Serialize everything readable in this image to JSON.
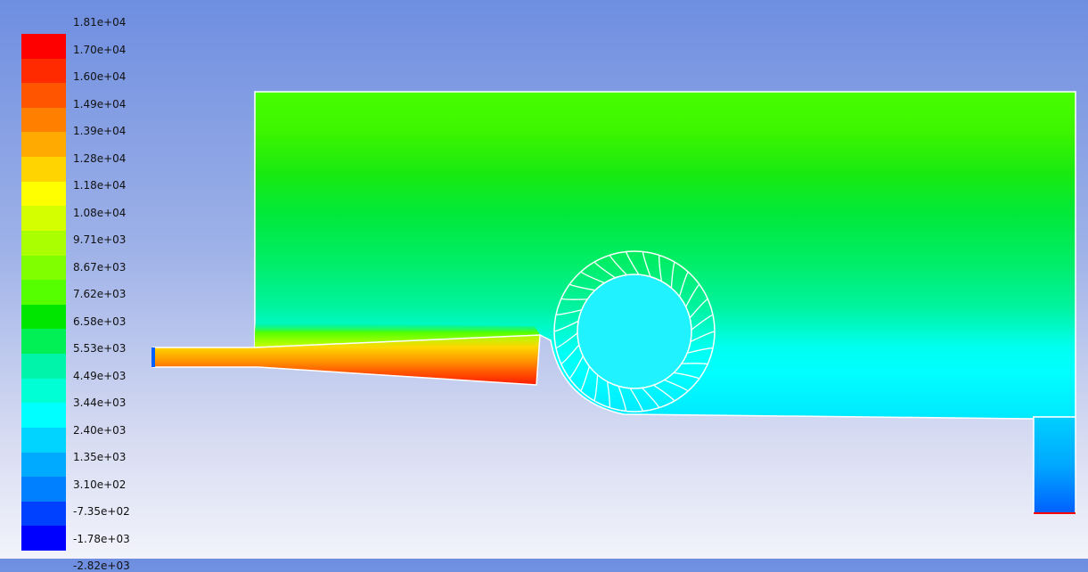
{
  "chart_data": {
    "type": "heatmap",
    "title": "",
    "legend": {
      "placement": "left",
      "tick_labels": [
        "1.81e+04",
        "1.70e+04",
        "1.60e+04",
        "1.49e+04",
        "1.39e+04",
        "1.28e+04",
        "1.18e+04",
        "1.08e+04",
        "9.71e+03",
        "8.67e+03",
        "7.62e+03",
        "6.58e+03",
        "5.53e+03",
        "4.49e+03",
        "3.44e+03",
        "2.40e+03",
        "1.35e+03",
        "3.10e+02",
        "-7.35e+02",
        "-1.78e+03",
        "-2.82e+03"
      ],
      "values": [
        18100,
        17000,
        16000,
        14900,
        13900,
        12800,
        11800,
        10800,
        9710,
        8670,
        7620,
        6580,
        5530,
        4490,
        3440,
        2400,
        1350,
        310,
        -735,
        -1780,
        -2820
      ],
      "colors": [
        "#ff0000",
        "#ff2a00",
        "#ff5500",
        "#ff7f00",
        "#ffaa00",
        "#ffd400",
        "#ffff00",
        "#d4ff00",
        "#aaff00",
        "#7fff00",
        "#55ff00",
        "#00e600",
        "#00f055",
        "#00f5aa",
        "#00ffd4",
        "#00ffff",
        "#00d4ff",
        "#00aaff",
        "#007fff",
        "#0040ff",
        "#0000ff"
      ]
    },
    "range": [
      -2820,
      18100
    ]
  }
}
